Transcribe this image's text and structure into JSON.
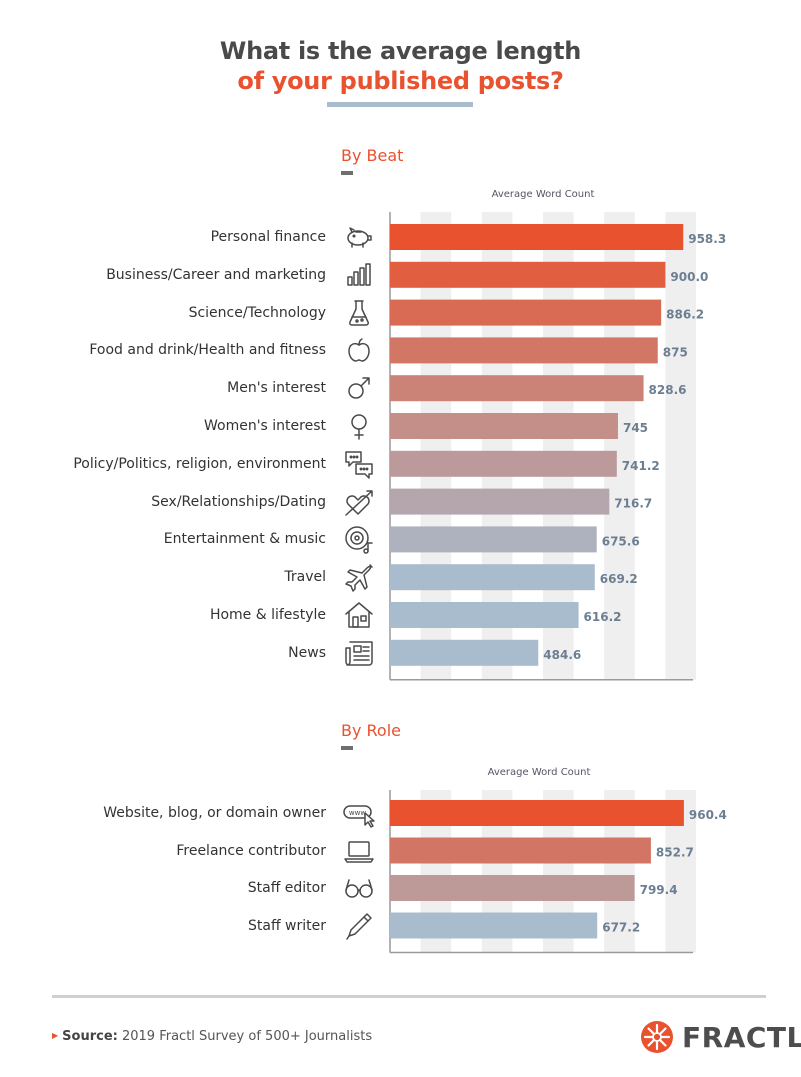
{
  "title_line1": "What is the average length",
  "title_line2": "of your published posts?",
  "chart_data": [
    {
      "type": "bar",
      "orientation": "horizontal",
      "title": "By Beat",
      "xlabel": "Average Word Count",
      "xlim": [
        0,
        1000
      ],
      "categories": [
        "Personal finance",
        "Business/Career and marketing",
        "Science/Technology",
        "Food and drink/Health and fitness",
        "Men's interest",
        "Women's interest",
        "Policy/Politics, religion, environment",
        "Sex/Relationships/Dating",
        "Entertainment & music",
        "Travel",
        "Home & lifestyle",
        "News"
      ],
      "values": [
        958.3,
        900.0,
        886.2,
        875,
        828.6,
        745,
        741.2,
        716.7,
        675.6,
        669.2,
        616.2,
        484.6
      ],
      "value_labels": [
        "958.3",
        "900.0",
        "886.2",
        "875",
        "828.6",
        "745",
        "741.2",
        "716.7",
        "675.6",
        "669.2",
        "616.2",
        "484.6"
      ],
      "icons": [
        "piggy-bank-icon",
        "bar-chart-icon",
        "flask-icon",
        "apple-icon",
        "male-symbol-icon",
        "female-symbol-icon",
        "chat-bubbles-icon",
        "heart-arrow-icon",
        "vinyl-music-icon",
        "airplane-icon",
        "house-icon",
        "newspaper-icon"
      ],
      "grid": true
    },
    {
      "type": "bar",
      "orientation": "horizontal",
      "title": "By Role",
      "xlabel": "Average Word Count",
      "xlim": [
        0,
        1000
      ],
      "categories": [
        "Website, blog, or domain owner",
        "Freelance contributor",
        "Staff editor",
        "Staff writer"
      ],
      "values": [
        960.4,
        852.7,
        799.4,
        677.2
      ],
      "value_labels": [
        "960.4",
        "852.7",
        "799.4",
        "677.2"
      ],
      "icons": [
        "www-cursor-icon",
        "laptop-icon",
        "glasses-icon",
        "pen-icon"
      ],
      "grid": true
    }
  ],
  "colors": {
    "accent": "#e8522f",
    "blue": "#a8bccd",
    "grid": "#efefef",
    "value_text": "#6c7f92"
  },
  "footer": {
    "source_label": "Source:",
    "source_text": "2019 Fractl Survey of 500+ Journalists",
    "logo_text": "FRACTL"
  }
}
